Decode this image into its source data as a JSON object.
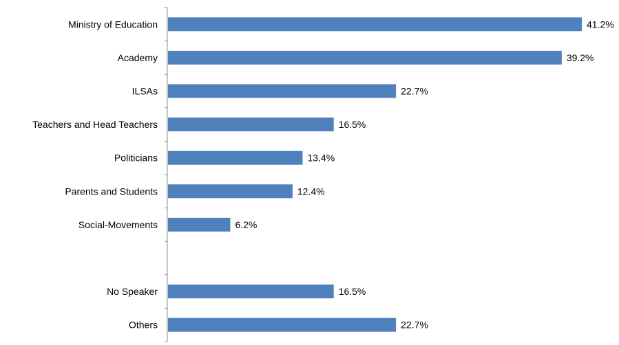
{
  "chart_data": {
    "type": "bar",
    "orientation": "horizontal",
    "title": "",
    "xlabel": "",
    "ylabel": "",
    "xlim": [
      0,
      45
    ],
    "grid": false,
    "legend": "none",
    "bar_color": "#4F81BD",
    "value_format": "percent-1dp",
    "categories": [
      "Ministry of Education",
      "Academy",
      "ILSAs",
      "Teachers and Head Teachers",
      "Politicians",
      "Parents and Students",
      "Social-Movements",
      "",
      "No Speaker",
      "Others"
    ],
    "values": [
      41.2,
      39.2,
      22.7,
      16.5,
      13.4,
      12.4,
      6.2,
      null,
      16.5,
      22.7
    ],
    "value_labels": [
      "41.2%",
      "39.2%",
      "22.7%",
      "16.5%",
      "13.4%",
      "12.4%",
      "6.2%",
      "",
      "16.5%",
      "22.7%"
    ]
  }
}
